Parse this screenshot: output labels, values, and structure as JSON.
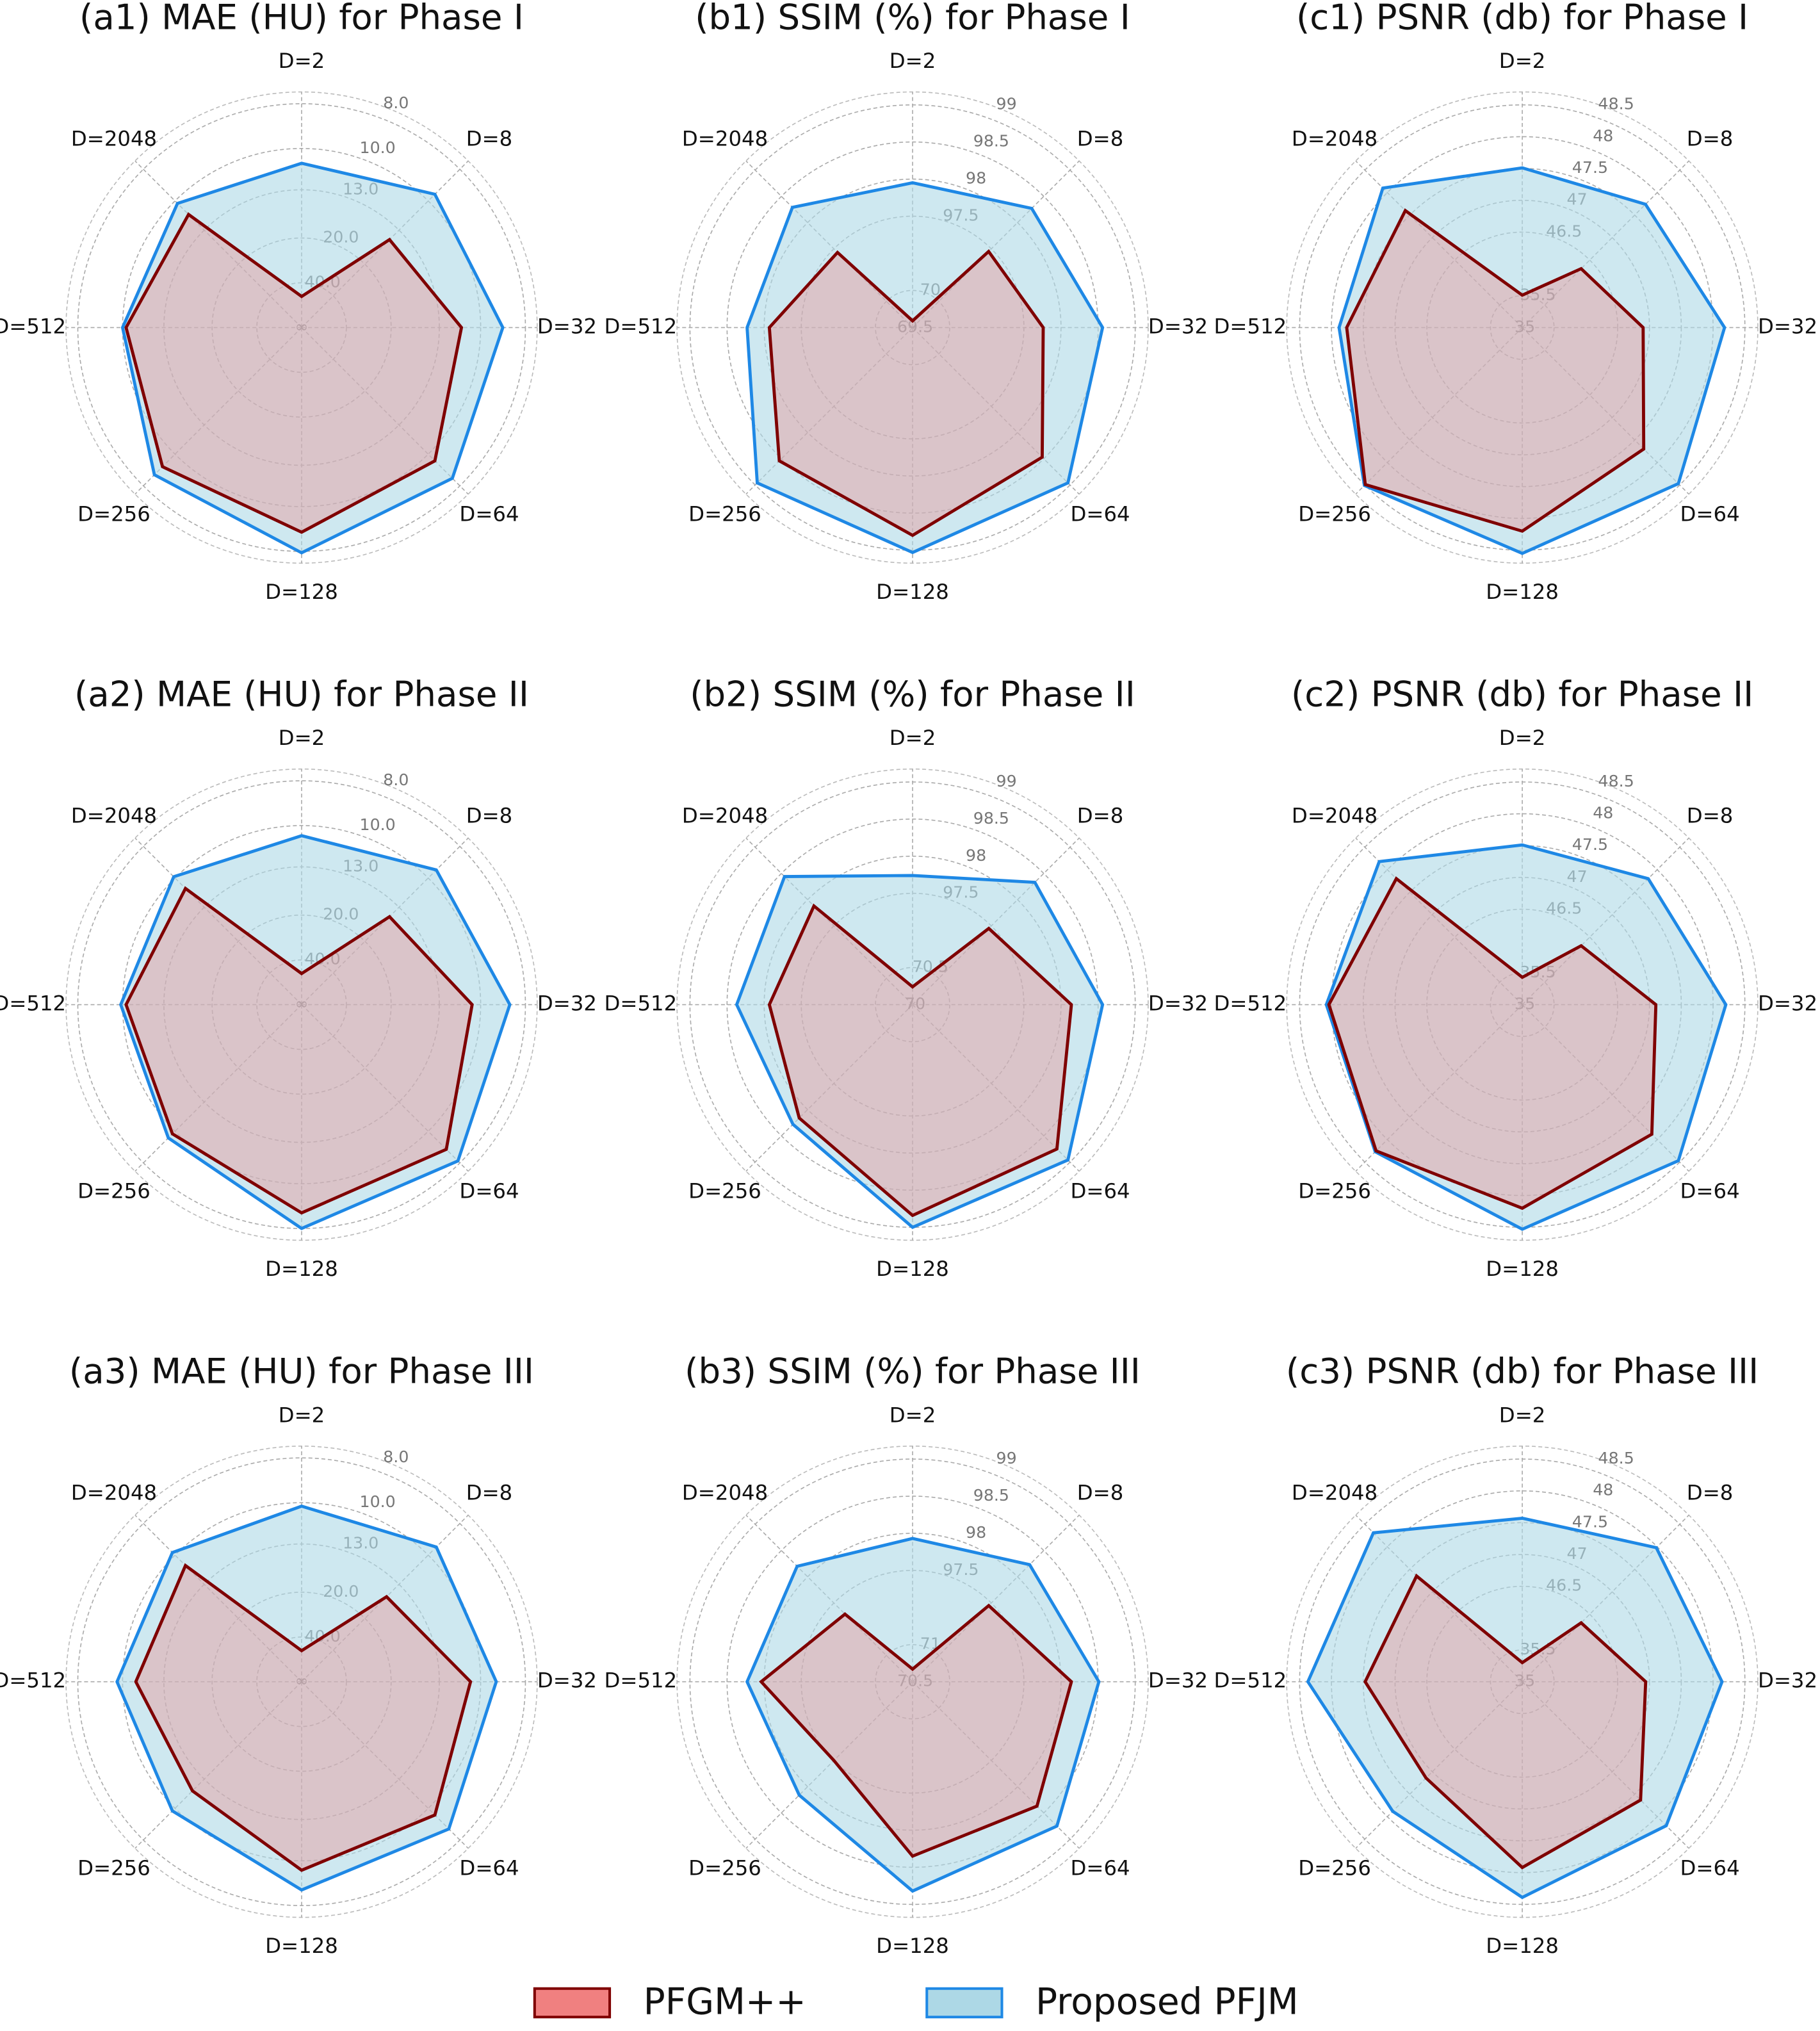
{
  "chart_data": [
    {
      "type": "radar",
      "title": "(a1) MAE (HU) for Phase I",
      "rscale": "reciprocal",
      "center_label": "∞",
      "rlim_outer": 7.6,
      "rticks": [
        {
          "value": 40,
          "label": "40.0"
        },
        {
          "value": 20,
          "label": "20.0"
        },
        {
          "value": 13,
          "label": "13.0"
        },
        {
          "value": 10,
          "label": "10.0"
        },
        {
          "value": 8,
          "label": "8.0"
        }
      ],
      "categories": [
        "D=2",
        "D=8",
        "D=32",
        "D=64",
        "D=128",
        "D=256",
        "D=512",
        "D=2048"
      ],
      "series": [
        {
          "name": "Proposed PFJM",
          "color": "#1e88e5",
          "fill": "#add8e6",
          "values": [
            10.9,
            9.5,
            8.9,
            8.4,
            7.95,
            8.6,
            10.0,
            10.2
          ]
        },
        {
          "name": "PFGM++",
          "color": "#7f0000",
          "fill": "#f08080",
          "values": [
            57.6,
            14.4,
            11.2,
            9.5,
            8.75,
            9.1,
            10.2,
            11.2
          ]
        }
      ]
    },
    {
      "type": "radar",
      "title": "(b1) SSIM (%) for Phase I",
      "rscale": "broken",
      "rticks": [
        69.5,
        70,
        97.5,
        98,
        98.5,
        99
      ],
      "categories": [
        "D=2",
        "D=8",
        "D=32",
        "D=64",
        "D=128",
        "D=256",
        "D=512",
        "D=2048"
      ],
      "series": [
        {
          "name": "Proposed PFJM",
          "color": "#1e88e5",
          "fill": "#add8e6",
          "values": [
            97.95,
            98.27,
            98.56,
            98.96,
            99.03,
            98.96,
            98.23,
            98.29
          ]
        },
        {
          "name": "PFGM++",
          "color": "#7f0000",
          "fill": "#f08080",
          "values": [
            69.59,
            96.1,
            97.76,
            98.47,
            98.8,
            98.54,
            97.93,
            95.6
          ]
        }
      ]
    },
    {
      "type": "radar",
      "title": "(c1) PSNR (db) for Phase I",
      "rscale": "broken",
      "rticks": [
        35,
        35.5,
        46.5,
        47,
        47.5,
        48,
        48.5
      ],
      "categories": [
        "D=2",
        "D=8",
        "D=32",
        "D=64",
        "D=128",
        "D=256",
        "D=512",
        "D=2048"
      ],
      "series": [
        {
          "name": "Proposed PFJM",
          "color": "#1e88e5",
          "fill": "#add8e6",
          "values": [
            47.51,
            47.74,
            48.18,
            48.47,
            48.55,
            48.51,
            47.88,
            48.1
          ]
        },
        {
          "name": "PFGM++",
          "color": "#7f0000",
          "fill": "#f08080",
          "values": [
            35.6,
            44.4,
            46.9,
            47.7,
            48.2,
            48.49,
            47.76,
            47.6
          ]
        }
      ]
    },
    {
      "type": "radar",
      "title": "(a2) MAE (HU) for Phase II",
      "rscale": "reciprocal",
      "center_label": "∞",
      "rlim_outer": 7.6,
      "rticks": [
        {
          "value": 40,
          "label": "40.0"
        },
        {
          "value": 20,
          "label": "20.0"
        },
        {
          "value": 13,
          "label": "13.0"
        },
        {
          "value": 10,
          "label": "10.0"
        },
        {
          "value": 8,
          "label": "8.0"
        }
      ],
      "categories": [
        "D=2",
        "D=8",
        "D=32",
        "D=64",
        "D=128",
        "D=256",
        "D=512",
        "D=2048"
      ],
      "series": [
        {
          "name": "Proposed PFJM",
          "color": "#1e88e5",
          "fill": "#add8e6",
          "values": [
            10.6,
            9.4,
            8.6,
            8.1,
            8.0,
            9.5,
            9.9,
            9.9
          ]
        },
        {
          "name": "PFGM++",
          "color": "#7f0000",
          "fill": "#f08080",
          "values": [
            57.6,
            14.4,
            10.5,
            8.75,
            8.6,
            9.8,
            10.2,
            10.9
          ]
        }
      ]
    },
    {
      "type": "radar",
      "title": "(b2) SSIM (%) for Phase II",
      "rscale": "broken",
      "rticks": [
        70,
        70.5,
        97.5,
        98,
        98.5,
        99
      ],
      "categories": [
        "D=2",
        "D=8",
        "D=32",
        "D=64",
        "D=128",
        "D=256",
        "D=512",
        "D=2048"
      ],
      "series": [
        {
          "name": "Proposed PFJM",
          "color": "#1e88e5",
          "fill": "#add8e6",
          "values": [
            97.74,
            98.33,
            98.56,
            98.96,
            99.0,
            98.28,
            98.37,
            98.44
          ]
        },
        {
          "name": "PFGM++",
          "color": "#7f0000",
          "fill": "#f08080",
          "values": [
            70.24,
            96.2,
            98.14,
            98.75,
            98.84,
            98.16,
            97.93,
            97.88
          ]
        }
      ]
    },
    {
      "type": "radar",
      "title": "(c2) PSNR (db) for Phase II",
      "rscale": "broken",
      "rticks": [
        35,
        35.5,
        46.5,
        47,
        47.5,
        48,
        48.5
      ],
      "categories": [
        "D=2",
        "D=8",
        "D=32",
        "D=64",
        "D=128",
        "D=256",
        "D=512",
        "D=2048"
      ],
      "series": [
        {
          "name": "Proposed PFJM",
          "color": "#1e88e5",
          "fill": "#add8e6",
          "values": [
            47.51,
            47.8,
            48.2,
            48.47,
            48.53,
            48.27,
            48.08,
            48.18
          ]
        },
        {
          "name": "PFGM++",
          "color": "#7f0000",
          "fill": "#f08080",
          "values": [
            35.43,
            44.4,
            47.1,
            47.88,
            48.2,
            48.25,
            48.04,
            47.8
          ]
        }
      ]
    },
    {
      "type": "radar",
      "title": "(a3) MAE (HU) for Phase III",
      "rscale": "reciprocal",
      "center_label": "∞",
      "rlim_outer": 7.6,
      "rticks": [
        {
          "value": 40,
          "label": "40.0"
        },
        {
          "value": 20,
          "label": "20.0"
        },
        {
          "value": 13,
          "label": "13.0"
        },
        {
          "value": 10,
          "label": "10.0"
        },
        {
          "value": 8,
          "label": "8.0"
        }
      ],
      "categories": [
        "D=2",
        "D=8",
        "D=32",
        "D=64",
        "D=128",
        "D=256",
        "D=512",
        "D=2048"
      ],
      "series": [
        {
          "name": "Proposed PFJM",
          "color": "#1e88e5",
          "fill": "#add8e6",
          "values": [
            10.2,
            9.4,
            9.2,
            8.6,
            8.6,
            9.8,
            9.7,
            9.8
          ]
        },
        {
          "name": "PFGM++",
          "color": "#7f0000",
          "fill": "#f08080",
          "values": [
            57.6,
            14.9,
            10.6,
            9.5,
            9.5,
            11.6,
            10.8,
            10.9
          ]
        }
      ]
    },
    {
      "type": "radar",
      "title": "(b3) SSIM (%) for Phase III",
      "rscale": "broken",
      "rticks": [
        70.5,
        71,
        97.5,
        98,
        98.5,
        99
      ],
      "categories": [
        "D=2",
        "D=8",
        "D=32",
        "D=64",
        "D=128",
        "D=256",
        "D=512",
        "D=2048"
      ],
      "series": [
        {
          "name": "Proposed PFJM",
          "color": "#1e88e5",
          "fill": "#add8e6",
          "values": [
            97.93,
            98.23,
            98.51,
            98.75,
            98.82,
            98.16,
            98.23,
            98.2
          ]
        },
        {
          "name": "PFGM++",
          "color": "#7f0000",
          "fill": "#f08080",
          "values": [
            70.67,
            96.2,
            98.14,
            98.37,
            98.35,
            97.5,
            98.04,
            91.9
          ]
        }
      ]
    },
    {
      "type": "radar",
      "title": "(c3) PSNR (db) for Phase III",
      "rscale": "broken",
      "rticks": [
        35,
        35.5,
        46.5,
        47,
        47.5,
        48,
        48.5
      ],
      "categories": [
        "D=2",
        "D=8",
        "D=32",
        "D=64",
        "D=128",
        "D=256",
        "D=512",
        "D=2048"
      ],
      "series": [
        {
          "name": "Proposed PFJM",
          "color": "#1e88e5",
          "fill": "#add8e6",
          "values": [
            47.57,
            47.98,
            48.14,
            48.2,
            48.39,
            47.88,
            48.37,
            48.31
          ]
        },
        {
          "name": "PFGM++",
          "color": "#7f0000",
          "fill": "#f08080",
          "values": [
            35.3,
            44.4,
            46.94,
            47.63,
            47.92,
            47.14,
            47.47,
            47.35
          ]
        }
      ]
    }
  ]
}
